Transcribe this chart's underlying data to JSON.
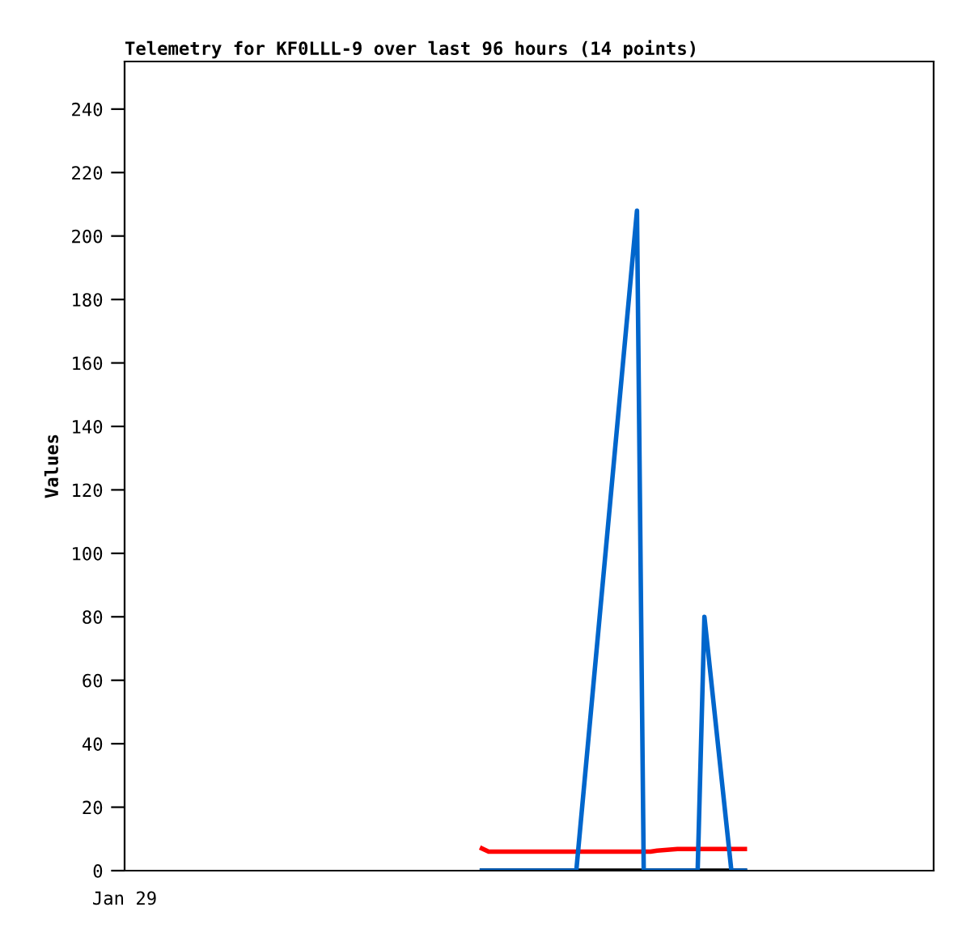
{
  "chart_data": {
    "type": "line",
    "title": "Telemetry for KF0LLL-9 over last 96 hours (14 points)",
    "ylabel": "Values",
    "annotations": [
      "Jan 29"
    ],
    "categories": [
      null,
      null,
      null,
      null,
      null,
      null,
      null,
      null,
      null,
      null,
      null,
      null,
      null,
      null,
      null,
      null,
      null,
      null,
      null,
      null,
      null,
      null,
      null,
      null,
      null,
      null,
      null,
      null,
      null,
      null,
      null,
      null,
      null,
      null,
      null,
      null,
      null,
      null,
      null,
      null,
      null,
      null,
      null,
      null,
      null,
      null,
      null,
      null,
      null,
      null,
      null,
      null,
      null,
      null,
      null,
      null,
      null,
      null,
      null,
      null,
      null,
      null,
      null,
      null,
      null,
      null,
      null,
      null,
      null,
      null,
      null,
      null,
      null,
      null,
      null,
      null,
      null,
      null,
      null,
      null,
      null,
      null,
      null,
      null,
      null,
      null,
      null,
      null,
      null,
      null,
      null,
      null,
      null,
      null,
      null,
      null,
      null,
      null,
      null,
      null,
      null,
      null,
      null,
      null,
      null,
      null,
      null,
      null,
      null,
      null,
      null,
      null,
      null,
      null,
      null,
      null,
      null,
      null,
      null,
      null,
      null
    ],
    "ylim": [
      0,
      255
    ],
    "yticks": [
      0,
      20,
      40,
      60,
      80,
      100,
      120,
      140,
      160,
      180,
      200,
      220,
      240
    ],
    "grid": false,
    "legend": false,
    "marker": "none",
    "line_style": "solid",
    "series": [
      {
        "color": "#000000",
        "values": [
          null,
          null,
          null,
          null,
          null,
          null,
          null,
          null,
          null,
          null,
          null,
          null,
          null,
          null,
          null,
          null,
          null,
          null,
          null,
          null,
          null,
          null,
          null,
          null,
          null,
          null,
          null,
          null,
          null,
          null,
          null,
          null,
          null,
          null,
          null,
          null,
          null,
          null,
          null,
          null,
          null,
          null,
          null,
          null,
          null,
          null,
          null,
          null,
          null,
          null,
          null,
          null,
          null,
          0,
          null,
          null,
          null,
          null,
          null,
          null,
          null,
          null,
          null,
          null,
          null,
          null,
          null,
          null,
          null,
          null,
          null,
          null,
          null,
          null,
          null,
          null,
          null,
          null,
          null,
          null,
          null,
          null,
          null,
          null,
          null,
          null,
          null,
          null,
          null,
          null,
          null,
          null,
          0,
          null,
          null,
          null,
          null,
          null,
          null,
          null,
          null,
          null,
          null,
          null,
          null,
          null,
          null,
          null,
          null,
          null,
          null,
          null,
          null,
          null,
          null,
          null,
          null,
          null,
          null,
          null,
          null
        ]
      },
      {
        "color": "#ff0000",
        "values": [
          null,
          null,
          null,
          null,
          null,
          null,
          null,
          null,
          null,
          null,
          null,
          null,
          null,
          null,
          null,
          null,
          null,
          null,
          null,
          null,
          null,
          null,
          null,
          null,
          null,
          null,
          null,
          null,
          null,
          null,
          null,
          null,
          null,
          null,
          null,
          null,
          null,
          null,
          null,
          null,
          null,
          null,
          null,
          null,
          null,
          null,
          null,
          null,
          null,
          null,
          null,
          null,
          null,
          7.0,
          6.0,
          null,
          null,
          null,
          null,
          null,
          null,
          null,
          null,
          null,
          null,
          null,
          null,
          null,
          null,
          null,
          null,
          null,
          null,
          null,
          null,
          null,
          null,
          null,
          6.0,
          6.3,
          null,
          null,
          6.8,
          null,
          null,
          null,
          null,
          null,
          null,
          null,
          null,
          null,
          6.8,
          null,
          null,
          null,
          null,
          null,
          null,
          null,
          null,
          null,
          null,
          null,
          null,
          null,
          null,
          null,
          null,
          null,
          null,
          null,
          null,
          null,
          null,
          null,
          null,
          null,
          null,
          null,
          null
        ]
      },
      {
        "color": "#0066cc",
        "values": [
          null,
          null,
          null,
          null,
          null,
          null,
          null,
          null,
          null,
          null,
          null,
          null,
          null,
          null,
          null,
          null,
          null,
          null,
          null,
          null,
          null,
          null,
          null,
          null,
          null,
          null,
          null,
          null,
          null,
          null,
          null,
          null,
          null,
          null,
          null,
          null,
          null,
          null,
          null,
          null,
          null,
          null,
          null,
          null,
          null,
          null,
          null,
          null,
          null,
          null,
          null,
          null,
          null,
          0,
          null,
          null,
          null,
          null,
          null,
          null,
          null,
          null,
          null,
          null,
          null,
          null,
          null,
          0,
          null,
          null,
          null,
          null,
          null,
          null,
          null,
          null,
          208,
          0,
          null,
          null,
          null,
          null,
          null,
          null,
          null,
          0,
          80,
          null,
          null,
          null,
          0,
          null,
          0,
          null,
          null,
          null,
          null,
          null,
          null,
          null,
          null,
          null,
          null,
          null,
          null,
          null,
          null,
          null,
          null,
          null,
          null,
          null,
          null,
          null,
          null,
          null,
          null,
          null,
          null,
          null,
          null
        ]
      }
    ]
  }
}
